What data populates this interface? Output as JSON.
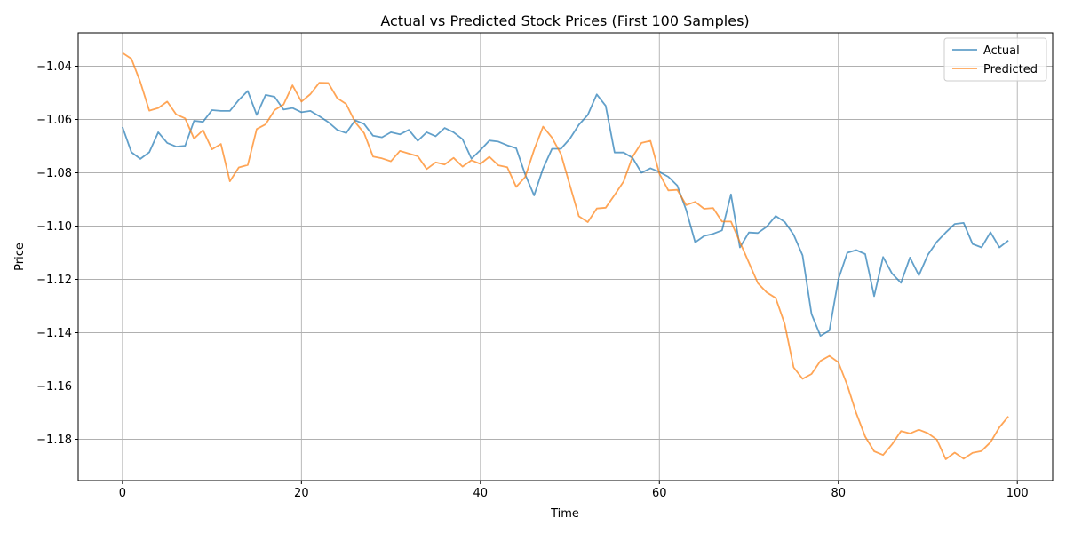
{
  "chart_data": {
    "type": "line",
    "title": "Actual vs Predicted Stock Prices (First 100 Samples)",
    "xlabel": "Time",
    "ylabel": "Price",
    "xlim": [
      -4.95,
      103.95
    ],
    "ylim": [
      -1.1955,
      -1.0275
    ],
    "xticks": [
      0,
      20,
      40,
      60,
      80,
      100
    ],
    "yticks": [
      -1.18,
      -1.16,
      -1.14,
      -1.12,
      -1.1,
      -1.08,
      -1.06,
      -1.04
    ],
    "grid": true,
    "legend_position": "top-right",
    "x": [
      0,
      1,
      2,
      3,
      4,
      5,
      6,
      7,
      8,
      9,
      10,
      11,
      12,
      13,
      14,
      15,
      16,
      17,
      18,
      19,
      20,
      21,
      22,
      23,
      24,
      25,
      26,
      27,
      28,
      29,
      30,
      31,
      32,
      33,
      34,
      35,
      36,
      37,
      38,
      39,
      40,
      41,
      42,
      43,
      44,
      45,
      46,
      47,
      48,
      49,
      50,
      51,
      52,
      53,
      54,
      55,
      56,
      57,
      58,
      59,
      60,
      61,
      62,
      63,
      64,
      65,
      66,
      67,
      68,
      69,
      70,
      71,
      72,
      73,
      74,
      75,
      76,
      77,
      78,
      79,
      80,
      81,
      82,
      83,
      84,
      85,
      86,
      87,
      88,
      89,
      90,
      91,
      92,
      93,
      94,
      95,
      96,
      97,
      98,
      99
    ],
    "series": [
      {
        "name": "Actual",
        "color": "#1f77b4",
        "values": [
          -1.0628,
          -1.0723,
          -1.0748,
          -1.0723,
          -1.0648,
          -1.0688,
          -1.0702,
          -1.0699,
          -1.0605,
          -1.0609,
          -1.0565,
          -1.0568,
          -1.0568,
          -1.0527,
          -1.0493,
          -1.0583,
          -1.0508,
          -1.0515,
          -1.0563,
          -1.0557,
          -1.0573,
          -1.0568,
          -1.0588,
          -1.061,
          -1.0639,
          -1.0651,
          -1.0603,
          -1.0617,
          -1.0661,
          -1.0667,
          -1.0648,
          -1.0656,
          -1.0639,
          -1.068,
          -1.0648,
          -1.0663,
          -1.0632,
          -1.0648,
          -1.0674,
          -1.0747,
          -1.0715,
          -1.0679,
          -1.0683,
          -1.0697,
          -1.0708,
          -1.0806,
          -1.0885,
          -1.0784,
          -1.071,
          -1.071,
          -1.0672,
          -1.062,
          -1.0583,
          -1.0506,
          -1.0549,
          -1.0724,
          -1.0724,
          -1.0744,
          -1.08,
          -1.0783,
          -1.0797,
          -1.0815,
          -1.0848,
          -1.094,
          -1.1061,
          -1.1037,
          -1.1029,
          -1.1016,
          -1.0881,
          -1.108,
          -1.1024,
          -1.1026,
          -1.1002,
          -1.0962,
          -1.0984,
          -1.1032,
          -1.111,
          -1.133,
          -1.1412,
          -1.1392,
          -1.12,
          -1.11,
          -1.109,
          -1.1105,
          -1.1263,
          -1.1116,
          -1.1178,
          -1.1213,
          -1.1118,
          -1.1185,
          -1.1108,
          -1.1059,
          -1.1024,
          -1.0992,
          -1.0988,
          -1.1067,
          -1.108,
          -1.1023,
          -1.108,
          -1.1054
        ]
      },
      {
        "name": "Predicted",
        "color": "#ff7f0e",
        "values": [
          -1.035,
          -1.0372,
          -1.046,
          -1.0567,
          -1.0557,
          -1.0533,
          -1.0581,
          -1.0596,
          -1.0672,
          -1.064,
          -1.0712,
          -1.0692,
          -1.0832,
          -1.078,
          -1.0771,
          -1.0636,
          -1.0618,
          -1.0565,
          -1.0544,
          -1.0472,
          -1.0533,
          -1.0505,
          -1.0462,
          -1.0463,
          -1.052,
          -1.0542,
          -1.061,
          -1.0651,
          -1.0739,
          -1.0746,
          -1.0757,
          -1.0718,
          -1.0728,
          -1.0738,
          -1.0786,
          -1.0761,
          -1.0769,
          -1.0744,
          -1.0777,
          -1.0753,
          -1.0767,
          -1.074,
          -1.0772,
          -1.0779,
          -1.0853,
          -1.0816,
          -1.0714,
          -1.0627,
          -1.0668,
          -1.073,
          -1.0847,
          -1.0963,
          -1.0985,
          -1.0934,
          -1.0931,
          -1.0883,
          -1.0833,
          -1.074,
          -1.0688,
          -1.068,
          -1.0803,
          -1.0866,
          -1.0864,
          -1.0921,
          -1.0909,
          -1.0935,
          -1.0932,
          -1.0983,
          -1.0983,
          -1.106,
          -1.1137,
          -1.1214,
          -1.1249,
          -1.127,
          -1.1367,
          -1.153,
          -1.1573,
          -1.1555,
          -1.1506,
          -1.1487,
          -1.1511,
          -1.1597,
          -1.1702,
          -1.179,
          -1.1845,
          -1.1859,
          -1.1819,
          -1.1769,
          -1.1778,
          -1.1764,
          -1.1777,
          -1.1801,
          -1.1875,
          -1.185,
          -1.1873,
          -1.1851,
          -1.1844,
          -1.1811,
          -1.1755,
          -1.1714
        ]
      }
    ]
  }
}
